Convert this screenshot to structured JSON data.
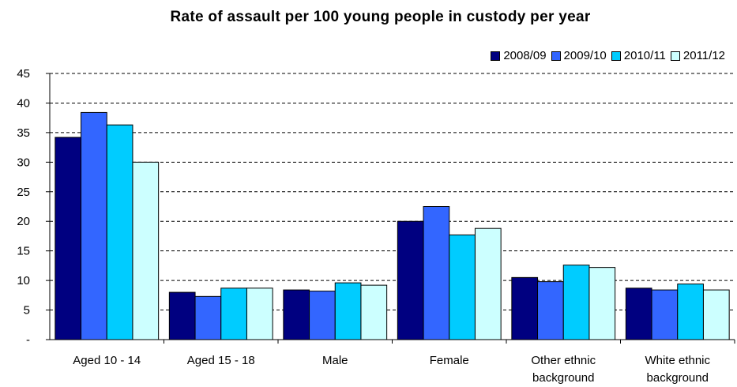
{
  "chart_data": {
    "type": "bar",
    "title": "Rate of assault per 100 young people in custody per year",
    "xlabel": "",
    "ylabel": "",
    "ylim": [
      0,
      45
    ],
    "yticks": [
      "-",
      "5",
      "10",
      "15",
      "20",
      "25",
      "30",
      "35",
      "40",
      "45"
    ],
    "grid": true,
    "legend_position": "top-right",
    "categories": [
      [
        "Aged 10 - 14"
      ],
      [
        "Aged 15 - 18"
      ],
      [
        "Male"
      ],
      [
        "Female"
      ],
      [
        "Other ethnic",
        "background"
      ],
      [
        "White ethnic",
        "background"
      ]
    ],
    "series": [
      {
        "name": "2008/09",
        "color": "#000080",
        "values": [
          34.2,
          8.0,
          8.4,
          20.0,
          10.5,
          8.7
        ]
      },
      {
        "name": "2009/10",
        "color": "#3366FF",
        "values": [
          38.4,
          7.3,
          8.2,
          22.5,
          9.8,
          8.4
        ]
      },
      {
        "name": "2010/11",
        "color": "#00CCFF",
        "values": [
          36.3,
          8.7,
          9.6,
          17.7,
          12.6,
          9.4
        ]
      },
      {
        "name": "2011/12",
        "color": "#CCFFFF",
        "values": [
          30.0,
          8.7,
          9.2,
          18.8,
          12.2,
          8.4
        ]
      }
    ]
  }
}
